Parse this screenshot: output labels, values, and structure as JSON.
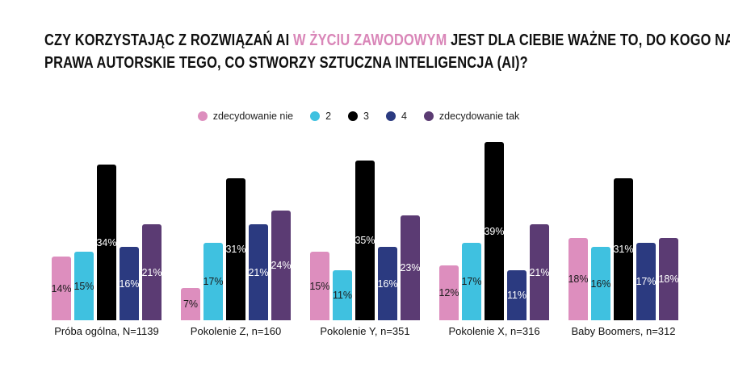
{
  "title": {
    "line1_pre": "CZY KORZYSTAJĄC Z ROZWIĄZAŃ AI ",
    "line1_highlight": "W ŻYCIU ZAWODOWYM",
    "line1_post": " JEST DLA CIEBIE WAŻNE TO, DO KOGO NALEŻĄ",
    "line2": "PRAWA AUTORSKIE TEGO, CO STWORZY SZTUCZNA INTELIGENCJA (AI)?",
    "highlight_color": "#d986b8",
    "text_color": "#101010"
  },
  "chart_data": {
    "type": "bar",
    "title": "CZY KORZYSTAJĄC Z ROZWIĄZAŃ AI W ŻYCIU ZAWODOWYM JEST DLA CIEBIE WAŻNE TO, DO KOGO NALEŻĄ PRAWA AUTORSKIE TEGO, CO STWORZY SZTUCZNA INTELIGENCJA (AI)?",
    "categories": [
      "Próba ogólna, N=1139",
      "Pokolenie Z, n=160",
      "Pokolenie Y, n=351",
      "Pokolenie X, n=316",
      "Baby Boomers, n=312"
    ],
    "series": [
      {
        "name": "zdecydowanie nie",
        "color": "#dd8ebe",
        "label_color": "#1a1a1a",
        "values": [
          14,
          7,
          15,
          12,
          18
        ]
      },
      {
        "name": "2",
        "color": "#3fc1e0",
        "label_color": "#1a1a1a",
        "values": [
          15,
          17,
          11,
          17,
          16
        ]
      },
      {
        "name": "3",
        "color": "#000000",
        "label_color": "#ffffff",
        "values": [
          34,
          31,
          35,
          39,
          31
        ]
      },
      {
        "name": "4",
        "color": "#2b3a80",
        "label_color": "#ffffff",
        "values": [
          16,
          21,
          16,
          11,
          17
        ]
      },
      {
        "name": "zdecydowanie tak",
        "color": "#5b3b73",
        "label_color": "#ffffff",
        "values": [
          21,
          24,
          23,
          21,
          18
        ]
      }
    ],
    "value_suffix": "%",
    "ylim": [
      0,
      42
    ],
    "grid": false,
    "legend_position": "top",
    "value_labels": "centered-inside-bars"
  }
}
